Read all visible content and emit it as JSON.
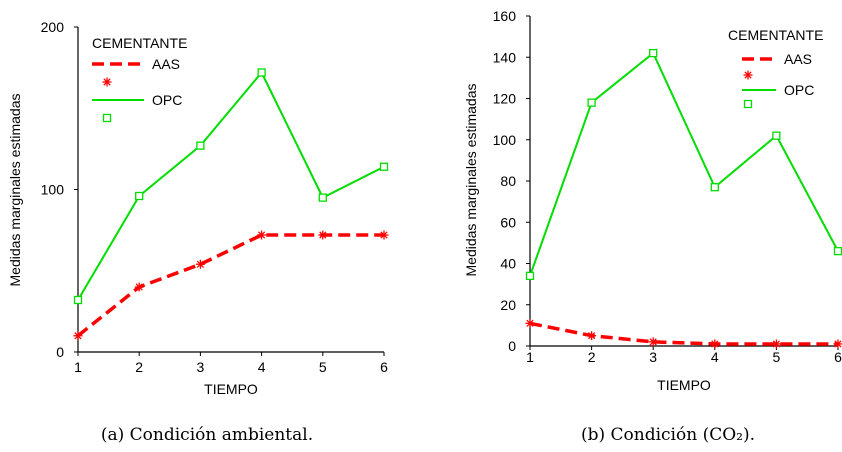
{
  "chart_data": [
    {
      "type": "line",
      "caption": "(a) Condición ambiental.",
      "xlabel": "TIEMPO",
      "ylabel": "Medidas marginales estimadas",
      "x": [
        1,
        2,
        3,
        4,
        5,
        6
      ],
      "xticks": [
        "1",
        "2",
        "3",
        "4",
        "5",
        "6"
      ],
      "yticks": [
        "0",
        "100",
        "200"
      ],
      "ylim": [
        0,
        200
      ],
      "legend": {
        "title": "CEMENTANTE",
        "position": "top-left"
      },
      "series": [
        {
          "name": "AAS",
          "color": "#ff0000",
          "style": "dashed",
          "marker": "asterisk",
          "values": [
            10,
            40,
            54,
            72,
            72,
            72
          ]
        },
        {
          "name": "OPC",
          "color": "#00dd00",
          "style": "solid",
          "marker": "square",
          "values": [
            32,
            96,
            127,
            172,
            95,
            114
          ]
        }
      ]
    },
    {
      "type": "line",
      "caption": "(b) Condición (CO₂).",
      "xlabel": "TIEMPO",
      "ylabel": "Medidas marginales estimadas",
      "x": [
        1,
        2,
        3,
        4,
        5,
        6
      ],
      "xticks": [
        "1",
        "2",
        "3",
        "4",
        "5",
        "6"
      ],
      "yticks": [
        "0",
        "20",
        "40",
        "60",
        "80",
        "100",
        "120",
        "140",
        "160"
      ],
      "ylim": [
        0,
        160
      ],
      "legend": {
        "title": "CEMENTANTE",
        "position": "top-right"
      },
      "series": [
        {
          "name": "AAS",
          "color": "#ff0000",
          "style": "dashed",
          "marker": "asterisk",
          "values": [
            11,
            5,
            2,
            1,
            1,
            1
          ]
        },
        {
          "name": "OPC",
          "color": "#00dd00",
          "style": "solid",
          "marker": "square",
          "values": [
            34,
            118,
            142,
            77,
            102,
            46
          ]
        }
      ]
    }
  ]
}
